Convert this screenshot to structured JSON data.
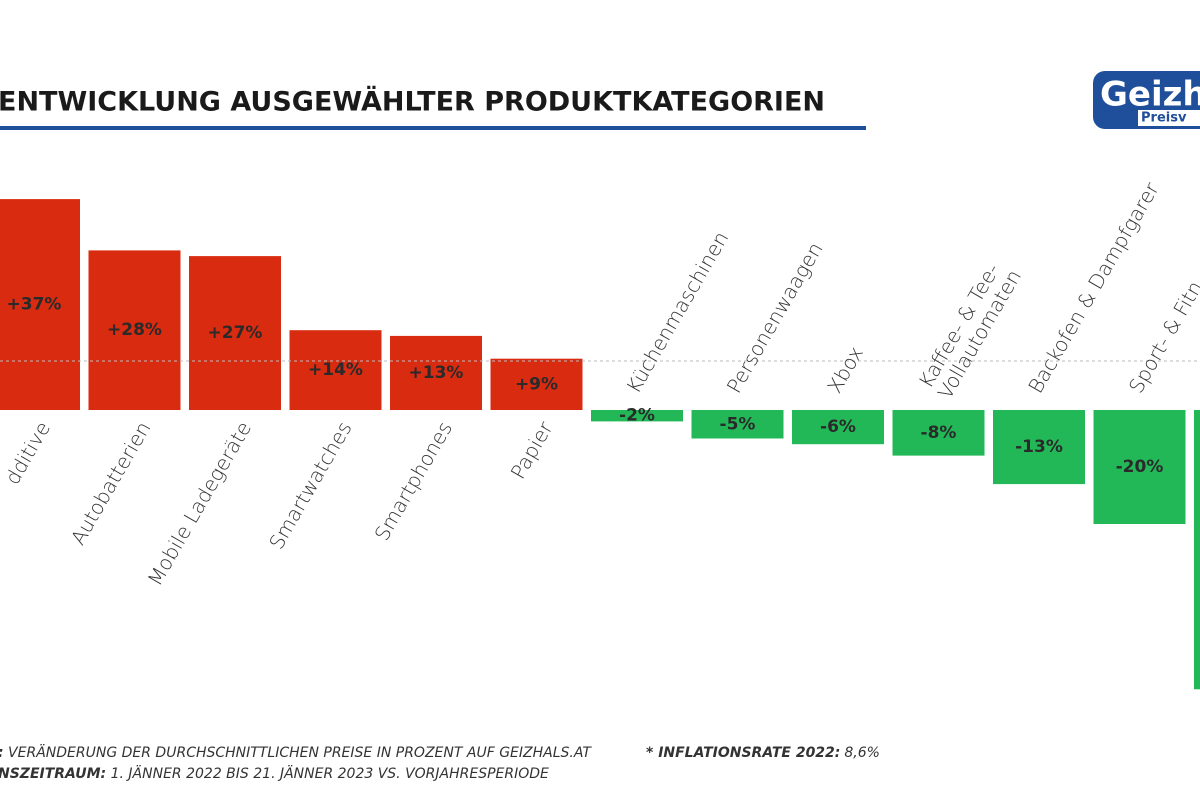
{
  "chart_data": {
    "type": "bar",
    "title": "ENTWICKLUNG AUSGEWÄHLTER PRODUKTKATEGORIEN",
    "logo": {
      "main": "Geizh",
      "sub": "Preisv"
    },
    "categories": [
      "dditive",
      "Autobatterien",
      "Mobile Ladegeräte",
      "Smartwatches",
      "Smartphones",
      "Papier",
      "Küchenmaschinen",
      "Personenwaagen",
      "Xbox",
      [
        "Kaffee- & Tee-",
        "Vollautomaten"
      ],
      "Backofen & Dampfgarer",
      "Sport- & Fitn",
      null
    ],
    "values": [
      37,
      28,
      27,
      14,
      13,
      9,
      -2,
      -5,
      -6,
      -8,
      -13,
      -20,
      -49
    ],
    "value_labels": [
      "+37%",
      "+28%",
      "+27%",
      "+14%",
      "+13%",
      "+9%",
      "-2%",
      "-5%",
      "-6%",
      "-8%",
      "-13%",
      "-20%",
      null
    ],
    "positive_color": "#d92b10",
    "negative_color": "#22b857",
    "ylim": [
      -50,
      40
    ],
    "reference_line": {
      "value": 8.6,
      "label": "8,6%"
    },
    "footnotes": {
      "source_label": ":",
      "source_text": " VERÄNDERUNG DER DURCHSCHNITTLICHEN PREISE IN PROZENT AUF GEIZHALS.AT",
      "period_label": "NSZEITRAUM:",
      "period_text": " 1. JÄNNER 2022 BIS 21. JÄNNER 2023 VS. VORJAHRESPERIODE",
      "inflation_label": "* INFLATIONSRATE 2022:"
    }
  }
}
